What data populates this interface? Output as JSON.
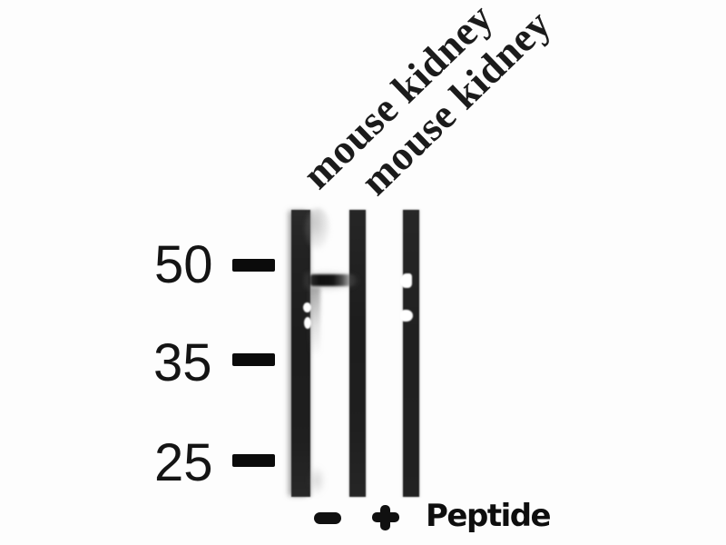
{
  "figure": {
    "kind": "western blot",
    "lane_labels": [
      {
        "text": "mouse kidney"
      },
      {
        "text": "mouse kidney"
      }
    ],
    "mw_markers": [
      {
        "value": "50"
      },
      {
        "value": "35"
      },
      {
        "value": "25"
      }
    ],
    "treatments": {
      "lane1": "−",
      "lane2": "+",
      "caption": "Peptide"
    },
    "colors": {
      "background": "#fdfdfd",
      "ink": "#111111",
      "lane_strip": "#212121",
      "band": "#101010"
    }
  }
}
